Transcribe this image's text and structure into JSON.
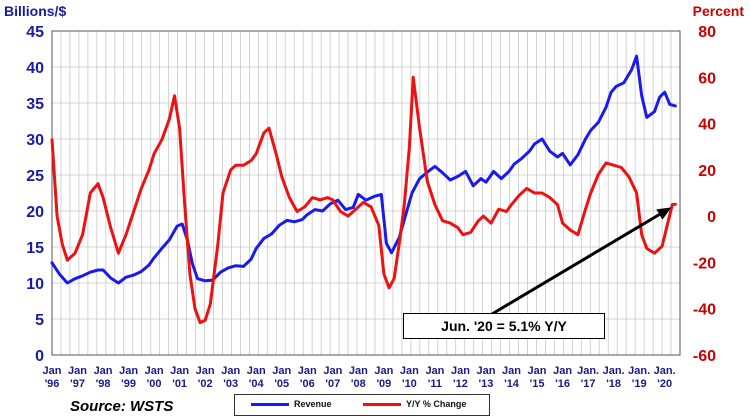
{
  "chart_data": {
    "type": "line",
    "left_axis_label": "Billions/$",
    "right_axis_label": "Percent",
    "left_ylim": [
      0,
      45
    ],
    "left_ticks": [
      0,
      5,
      10,
      15,
      20,
      25,
      30,
      35,
      40,
      45
    ],
    "right_ylim": [
      -60,
      80
    ],
    "right_ticks": [
      -60,
      -40,
      -20,
      0,
      20,
      40,
      60,
      80
    ],
    "x_ticks": [
      {
        "month": "Jan",
        "year": "'96"
      },
      {
        "month": "Jan",
        "year": "'97"
      },
      {
        "month": "Jan",
        "year": "'98"
      },
      {
        "month": "Jan",
        "year": "'99"
      },
      {
        "month": "Jan",
        "year": "'00"
      },
      {
        "month": "Jan",
        "year": "'01"
      },
      {
        "month": "Jan",
        "year": "'02"
      },
      {
        "month": "Jan",
        "year": "'03"
      },
      {
        "month": "Jan",
        "year": "'04"
      },
      {
        "month": "Jan",
        "year": "'05"
      },
      {
        "month": "Jan",
        "year": "'06"
      },
      {
        "month": "Jan",
        "year": "'07"
      },
      {
        "month": "Jan",
        "year": "'08"
      },
      {
        "month": "Jan",
        "year": "'09"
      },
      {
        "month": "Jan",
        "year": "'10"
      },
      {
        "month": "Jan",
        "year": "'11"
      },
      {
        "month": "Jan",
        "year": "'12"
      },
      {
        "month": "Jan",
        "year": "'13"
      },
      {
        "month": "Jan",
        "year": "'14"
      },
      {
        "month": "Jan",
        "year": "'15"
      },
      {
        "month": "Jan",
        "year": "'16"
      },
      {
        "month": "Jan.",
        "year": "'17"
      },
      {
        "month": "Jan.",
        "year": "'18"
      },
      {
        "month": "Jan.",
        "year": "'19"
      },
      {
        "month": "Jan.",
        "year": "'20"
      }
    ],
    "grid": true,
    "source": "Source: WSTS",
    "annotation": "Jun. '20 = 5.1% Y/Y",
    "series": [
      {
        "name": "Revenue",
        "axis": "left",
        "color": "#1a1aee",
        "points": [
          [
            1996.0,
            12.8
          ],
          [
            1996.3,
            11.2
          ],
          [
            1996.6,
            10.0
          ],
          [
            1996.9,
            10.6
          ],
          [
            1997.2,
            11.0
          ],
          [
            1997.5,
            11.5
          ],
          [
            1997.8,
            11.8
          ],
          [
            1998.0,
            11.8
          ],
          [
            1998.3,
            10.7
          ],
          [
            1998.6,
            10.0
          ],
          [
            1998.9,
            10.8
          ],
          [
            1999.2,
            11.1
          ],
          [
            1999.5,
            11.6
          ],
          [
            1999.8,
            12.5
          ],
          [
            2000.0,
            13.5
          ],
          [
            2000.3,
            14.8
          ],
          [
            2000.6,
            16.0
          ],
          [
            2000.9,
            17.9
          ],
          [
            2001.1,
            18.2
          ],
          [
            2001.3,
            16.0
          ],
          [
            2001.5,
            12.7
          ],
          [
            2001.7,
            10.6
          ],
          [
            2002.0,
            10.3
          ],
          [
            2002.3,
            10.4
          ],
          [
            2002.6,
            11.5
          ],
          [
            2002.9,
            12.1
          ],
          [
            2003.2,
            12.4
          ],
          [
            2003.5,
            12.3
          ],
          [
            2003.8,
            13.3
          ],
          [
            2004.0,
            14.8
          ],
          [
            2004.3,
            16.2
          ],
          [
            2004.6,
            16.8
          ],
          [
            2004.9,
            18.0
          ],
          [
            2005.2,
            18.7
          ],
          [
            2005.5,
            18.5
          ],
          [
            2005.8,
            18.8
          ],
          [
            2006.0,
            19.5
          ],
          [
            2006.3,
            20.2
          ],
          [
            2006.6,
            20.0
          ],
          [
            2006.9,
            21.0
          ],
          [
            2007.2,
            21.5
          ],
          [
            2007.5,
            20.2
          ],
          [
            2007.8,
            20.5
          ],
          [
            2008.0,
            22.3
          ],
          [
            2008.3,
            21.5
          ],
          [
            2008.6,
            22.0
          ],
          [
            2008.9,
            22.3
          ],
          [
            2009.1,
            15.5
          ],
          [
            2009.3,
            14.2
          ],
          [
            2009.6,
            16.3
          ],
          [
            2009.9,
            20.0
          ],
          [
            2010.1,
            22.5
          ],
          [
            2010.4,
            24.5
          ],
          [
            2010.7,
            25.4
          ],
          [
            2011.0,
            26.2
          ],
          [
            2011.3,
            25.3
          ],
          [
            2011.6,
            24.3
          ],
          [
            2011.9,
            24.8
          ],
          [
            2012.2,
            25.5
          ],
          [
            2012.5,
            23.5
          ],
          [
            2012.8,
            24.5
          ],
          [
            2013.0,
            24.0
          ],
          [
            2013.3,
            25.5
          ],
          [
            2013.6,
            24.5
          ],
          [
            2013.9,
            25.5
          ],
          [
            2014.1,
            26.5
          ],
          [
            2014.4,
            27.3
          ],
          [
            2014.7,
            28.3
          ],
          [
            2014.9,
            29.3
          ],
          [
            2015.2,
            30.0
          ],
          [
            2015.5,
            28.3
          ],
          [
            2015.8,
            27.5
          ],
          [
            2016.0,
            28.0
          ],
          [
            2016.3,
            26.4
          ],
          [
            2016.6,
            27.8
          ],
          [
            2016.9,
            30.0
          ],
          [
            2017.1,
            31.2
          ],
          [
            2017.4,
            32.3
          ],
          [
            2017.7,
            34.4
          ],
          [
            2017.9,
            36.5
          ],
          [
            2018.1,
            37.3
          ],
          [
            2018.4,
            37.8
          ],
          [
            2018.7,
            39.6
          ],
          [
            2018.9,
            41.5
          ],
          [
            2019.1,
            36.0
          ],
          [
            2019.3,
            33.0
          ],
          [
            2019.6,
            33.8
          ],
          [
            2019.8,
            35.8
          ],
          [
            2020.0,
            36.5
          ],
          [
            2020.2,
            34.8
          ],
          [
            2020.42,
            34.6
          ]
        ]
      },
      {
        "name": "Y/Y % Change",
        "axis": "right",
        "color": "#ee1111",
        "points": [
          [
            1996.0,
            33
          ],
          [
            1996.2,
            0
          ],
          [
            1996.4,
            -12
          ],
          [
            1996.6,
            -19
          ],
          [
            1996.9,
            -16
          ],
          [
            1997.2,
            -8
          ],
          [
            1997.5,
            10
          ],
          [
            1997.8,
            14
          ],
          [
            1998.0,
            8
          ],
          [
            1998.3,
            -5
          ],
          [
            1998.6,
            -16
          ],
          [
            1998.9,
            -8
          ],
          [
            1999.2,
            2
          ],
          [
            1999.5,
            12
          ],
          [
            1999.8,
            20
          ],
          [
            2000.0,
            27
          ],
          [
            2000.3,
            33
          ],
          [
            2000.6,
            42
          ],
          [
            2000.8,
            52
          ],
          [
            2001.0,
            38
          ],
          [
            2001.2,
            5
          ],
          [
            2001.4,
            -25
          ],
          [
            2001.6,
            -40
          ],
          [
            2001.8,
            -46
          ],
          [
            2002.0,
            -45
          ],
          [
            2002.2,
            -38
          ],
          [
            2002.5,
            -12
          ],
          [
            2002.7,
            10
          ],
          [
            2003.0,
            20
          ],
          [
            2003.2,
            22
          ],
          [
            2003.5,
            22
          ],
          [
            2003.8,
            24
          ],
          [
            2004.0,
            27
          ],
          [
            2004.3,
            36
          ],
          [
            2004.5,
            38
          ],
          [
            2004.8,
            26
          ],
          [
            2005.0,
            17
          ],
          [
            2005.3,
            8
          ],
          [
            2005.6,
            2
          ],
          [
            2005.9,
            4
          ],
          [
            2006.2,
            8
          ],
          [
            2006.5,
            7
          ],
          [
            2006.8,
            8
          ],
          [
            2007.0,
            7
          ],
          [
            2007.3,
            2
          ],
          [
            2007.6,
            0
          ],
          [
            2007.9,
            3
          ],
          [
            2008.2,
            6
          ],
          [
            2008.5,
            4
          ],
          [
            2008.8,
            -4
          ],
          [
            2009.0,
            -25
          ],
          [
            2009.2,
            -31
          ],
          [
            2009.4,
            -27
          ],
          [
            2009.6,
            -12
          ],
          [
            2009.8,
            5
          ],
          [
            2010.0,
            30
          ],
          [
            2010.15,
            60
          ],
          [
            2010.4,
            38
          ],
          [
            2010.7,
            15
          ],
          [
            2011.0,
            5
          ],
          [
            2011.3,
            -2
          ],
          [
            2011.6,
            -3
          ],
          [
            2011.9,
            -5
          ],
          [
            2012.1,
            -8
          ],
          [
            2012.4,
            -7
          ],
          [
            2012.7,
            -2
          ],
          [
            2012.9,
            0
          ],
          [
            2013.2,
            -3
          ],
          [
            2013.5,
            3
          ],
          [
            2013.8,
            2
          ],
          [
            2014.0,
            5
          ],
          [
            2014.3,
            9
          ],
          [
            2014.6,
            12
          ],
          [
            2014.9,
            10
          ],
          [
            2015.2,
            10
          ],
          [
            2015.5,
            8
          ],
          [
            2015.8,
            5
          ],
          [
            2016.0,
            -3
          ],
          [
            2016.3,
            -6
          ],
          [
            2016.6,
            -8
          ],
          [
            2016.9,
            3
          ],
          [
            2017.1,
            10
          ],
          [
            2017.4,
            18
          ],
          [
            2017.7,
            23
          ],
          [
            2018.0,
            22
          ],
          [
            2018.3,
            21
          ],
          [
            2018.6,
            17
          ],
          [
            2018.9,
            10
          ],
          [
            2019.1,
            -8
          ],
          [
            2019.3,
            -14
          ],
          [
            2019.6,
            -16
          ],
          [
            2019.9,
            -13
          ],
          [
            2020.1,
            -4
          ],
          [
            2020.3,
            5
          ],
          [
            2020.42,
            5.1
          ]
        ]
      }
    ]
  }
}
